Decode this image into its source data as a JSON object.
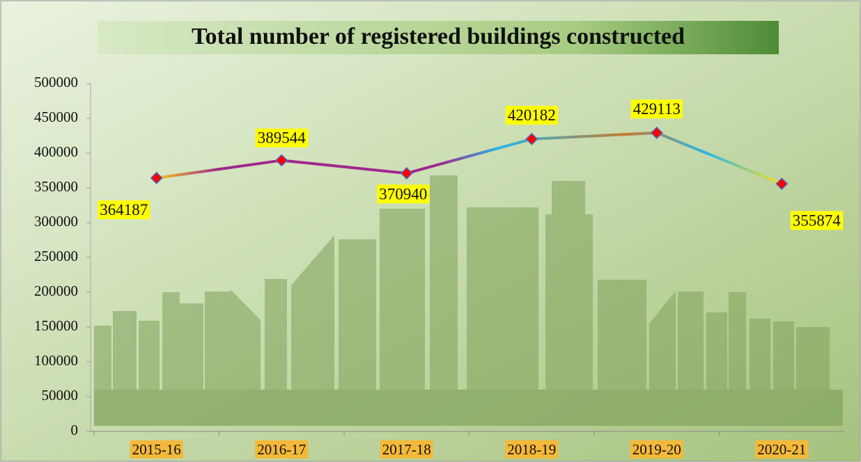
{
  "chart_data": {
    "type": "line",
    "title": "Total number of registered  buildings  constructed",
    "categories": [
      "2015-16",
      "2016-17",
      "2017-18",
      "2018-19",
      "2019-20",
      "2020-21"
    ],
    "series": [
      {
        "name": "Total number of registered buildings constructed",
        "color": "#9b2f8c",
        "marker_color": "#ff0000",
        "values": [
          364187,
          389544,
          370940,
          420182,
          429113,
          355874
        ]
      }
    ],
    "ylim": [
      0,
      500000
    ],
    "yticks": [
      0,
      50000,
      100000,
      150000,
      200000,
      250000,
      300000,
      350000,
      400000,
      450000,
      500000
    ],
    "grid": false
  }
}
